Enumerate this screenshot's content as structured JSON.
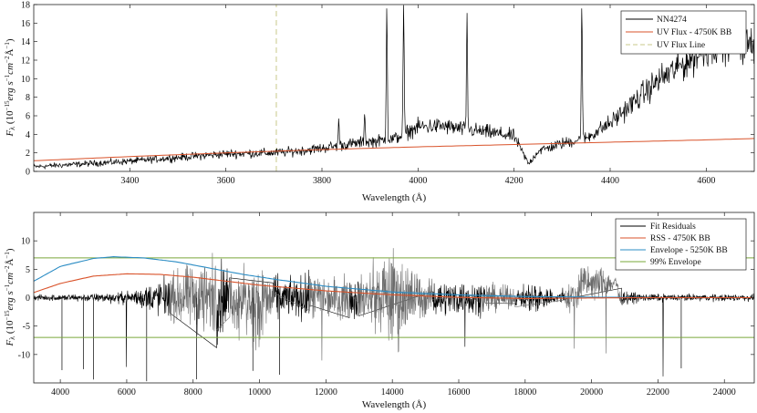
{
  "chart_data": [
    {
      "type": "line",
      "xlabel": "Wavelength (Å)",
      "ylabel": "F_λ (10^{-15} erg s^{-1} cm^{-2} Å^{-1})",
      "xlim": [
        3200,
        4700
      ],
      "ylim": [
        0,
        18
      ],
      "xticks": [
        "3400",
        "3600",
        "3800",
        "4000",
        "4200",
        "4400",
        "4600"
      ],
      "yticks": [
        "0",
        "2",
        "4",
        "6",
        "8",
        "10",
        "12",
        "14",
        "16",
        "18"
      ],
      "legend_position": "top-right",
      "colors": {
        "spectrum": "#000000",
        "bb": "#d9532b",
        "line": "#c8c88a"
      },
      "series": [
        {
          "name": "NN4274",
          "x": [
            3200,
            3300,
            3400,
            3500,
            3600,
            3700,
            3750,
            3800,
            3850,
            3900,
            3950,
            4000,
            4050,
            4100,
            4150,
            4200,
            4230,
            4250,
            4300,
            4350,
            4400,
            4450,
            4500,
            4550,
            4600,
            4650,
            4700
          ],
          "y": [
            0.5,
            0.8,
            1.1,
            1.5,
            1.9,
            2.0,
            2.2,
            2.5,
            2.9,
            3.2,
            3.5,
            4.8,
            4.9,
            4.5,
            4.2,
            3.8,
            0.8,
            2.2,
            3.0,
            3.6,
            5.2,
            7.5,
            9.8,
            11.5,
            13.2,
            14.2,
            13.5
          ]
        },
        {
          "name": "UV Flux - 4750K BB",
          "x": [
            3200,
            3400,
            3600,
            3800,
            4000,
            4200,
            4400,
            4600,
            4700
          ],
          "y": [
            1.15,
            1.6,
            2.0,
            2.35,
            2.65,
            2.9,
            3.15,
            3.4,
            3.55
          ]
        },
        {
          "name": "UV Flux Line",
          "x": [
            3705,
            3705
          ],
          "y": [
            0,
            18
          ]
        }
      ],
      "emission_lines": [
        {
          "x": 3835,
          "peak": 5.4
        },
        {
          "x": 3889,
          "peak": 6.5
        },
        {
          "x": 3935,
          "peak": 18
        },
        {
          "x": 3970,
          "peak": 18
        },
        {
          "x": 4102,
          "peak": 16.5
        },
        {
          "x": 4341,
          "peak": 18
        }
      ]
    },
    {
      "type": "line",
      "xlabel": "Wavelength (Å)",
      "ylabel": "F_λ (10^{-15} erg s^{-1} cm^{-2} Å^{-1})",
      "xlim": [
        3200,
        24900
      ],
      "ylim": [
        -15,
        15
      ],
      "xticks": [
        "4000",
        "6000",
        "8000",
        "10000",
        "12000",
        "14000",
        "16000",
        "18000",
        "20000",
        "22000",
        "24000"
      ],
      "yticks": [
        "-10",
        "-5",
        "0",
        "5",
        "10"
      ],
      "legend_position": "top-right",
      "colors": {
        "residuals": "#000000",
        "rss": "#d9532b",
        "envelope": "#2b8cc4",
        "envelope99": "#7aa83a"
      },
      "series": [
        {
          "name": "Fit Residuals",
          "x": [
            3200,
            6000,
            8000,
            10000,
            12000,
            14000,
            16000,
            18000,
            20000,
            22000,
            24900
          ],
          "y": [
            0,
            1.5,
            2,
            0.5,
            0,
            -1,
            0.5,
            0,
            2,
            0,
            0
          ]
        },
        {
          "name": "RSS - 4750K BB",
          "x": [
            3200,
            4000,
            5000,
            6000,
            7000,
            8000,
            9000,
            10000,
            12000,
            14000,
            16000,
            18000,
            20000,
            22000,
            24900
          ],
          "y": [
            0.9,
            2.5,
            3.8,
            4.2,
            4.1,
            3.6,
            2.9,
            2.2,
            1.2,
            0.5,
            0.05,
            -0.15,
            -0.05,
            0,
            0
          ]
        },
        {
          "name": "Envelope - 5250K BB",
          "x": [
            3200,
            4000,
            5000,
            5600,
            6500,
            7500,
            8500,
            9500,
            10500,
            12000,
            14000,
            16000,
            18000,
            20000,
            22000,
            24900
          ],
          "y": [
            2.9,
            5.5,
            6.9,
            7.2,
            7.0,
            6.3,
            5.2,
            4.1,
            3.2,
            2.0,
            1.0,
            0.5,
            0.2,
            0.1,
            0,
            0
          ]
        },
        {
          "name": "99% Envelope",
          "x": [
            3200,
            24900
          ],
          "y": [
            7.0,
            7.0
          ]
        }
      ],
      "envelope_lower": -7.0
    }
  ]
}
